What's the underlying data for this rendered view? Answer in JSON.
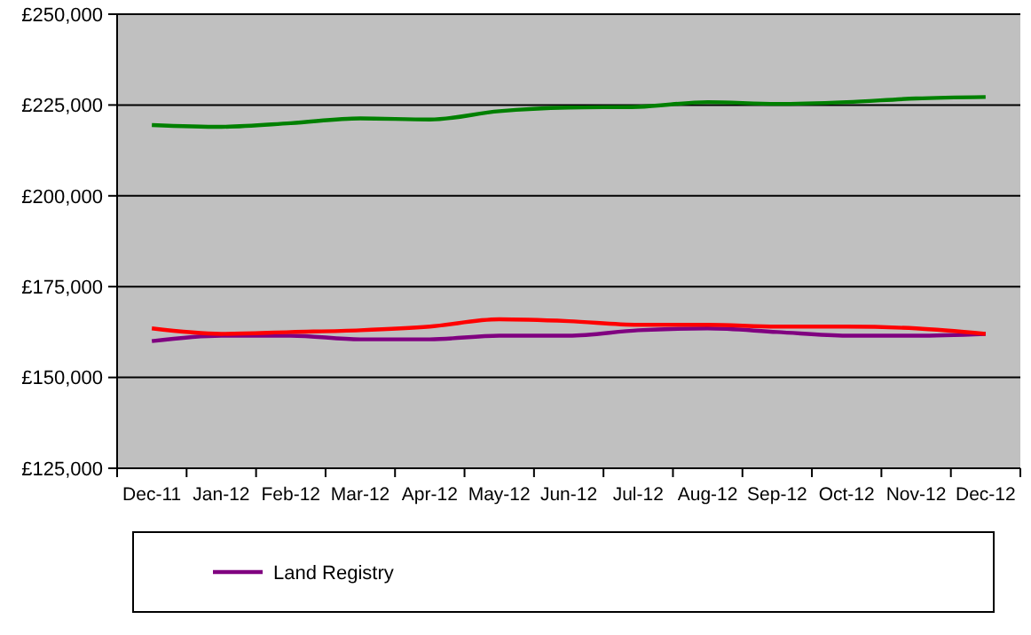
{
  "chart_data": {
    "type": "line",
    "categories": [
      "Dec-11",
      "Jan-12",
      "Feb-12",
      "Mar-12",
      "Apr-12",
      "May-12",
      "Jun-12",
      "Jul-12",
      "Aug-12",
      "Sep-12",
      "Oct-12",
      "Nov-12",
      "Dec-12"
    ],
    "series": [
      {
        "name": "Land Registry",
        "color": "#800080",
        "values": [
          160000,
          161500,
          161500,
          160500,
          160500,
          161500,
          161500,
          163000,
          163500,
          162500,
          161500,
          161500,
          162000
        ]
      },
      {
        "color": "#ff0000",
        "values": [
          163500,
          162000,
          162500,
          163000,
          164000,
          166000,
          165500,
          164500,
          164500,
          164000,
          164000,
          163500,
          162000
        ]
      },
      {
        "color": "#008000",
        "values": [
          219500,
          219000,
          220000,
          221300,
          221000,
          223300,
          224300,
          224500,
          225800,
          225300,
          225800,
          226800,
          227200
        ]
      }
    ],
    "ylim": [
      125000,
      250000
    ],
    "yticks": [
      {
        "value": 125000,
        "label": "£125,000"
      },
      {
        "value": 150000,
        "label": "£150,000"
      },
      {
        "value": 175000,
        "label": "£175,000"
      },
      {
        "value": 200000,
        "label": "£200,000"
      },
      {
        "value": 225000,
        "label": "£225,000"
      },
      {
        "value": 250000,
        "label": "£250,000"
      }
    ],
    "grid": "y",
    "legend": "bottom",
    "marker": "none",
    "line_style": "solid"
  }
}
